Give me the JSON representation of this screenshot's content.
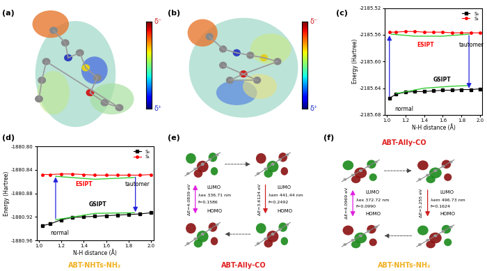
{
  "chart_data": [
    {
      "type": "line",
      "panel": "(c)",
      "xlabel": "N-H distance (Å)",
      "ylabel": "Energy (Hartree)",
      "xlim": [
        0.98,
        2.02
      ],
      "xticks": [
        {
          "value": 1.0,
          "label": "1.0"
        },
        {
          "value": 1.2,
          "label": "1.2"
        },
        {
          "value": 1.4,
          "label": "1.4"
        },
        {
          "value": 1.6,
          "label": "1.6"
        },
        {
          "value": 1.8,
          "label": "1.8"
        },
        {
          "value": 2.0,
          "label": "2.0"
        }
      ],
      "ylim": [
        -2185.68,
        -2185.52
      ],
      "yticks": [
        {
          "value": -2185.68,
          "label": "-2185.68"
        },
        {
          "value": -2185.64,
          "label": "-2185.64"
        },
        {
          "value": -2185.6,
          "label": "-2185.60"
        },
        {
          "value": -2185.56,
          "label": "-2185.56"
        },
        {
          "value": -2185.52,
          "label": "-2185.52"
        }
      ],
      "legend": "upper right",
      "series": [
        {
          "name": "S₀",
          "color": "#000000",
          "marker": "square",
          "line_style": "solid",
          "x": [
            1.03,
            1.1,
            1.2,
            1.3,
            1.4,
            1.5,
            1.6,
            1.7,
            1.8,
            1.9,
            2.0
          ],
          "values": [
            -2185.655,
            -2185.649,
            -2185.646,
            -2185.645,
            -2185.645,
            -2185.644,
            -2185.643,
            -2185.643,
            -2185.642,
            -2185.642,
            -2185.641
          ]
        },
        {
          "name": "S₁",
          "color": "#ff0000",
          "marker": "circle",
          "line_style": "solid",
          "x": [
            1.03,
            1.1,
            1.2,
            1.3,
            1.4,
            1.5,
            1.6,
            1.7,
            1.8,
            1.9,
            2.0
          ],
          "values": [
            -2185.556,
            -2185.556,
            -2185.555,
            -2185.555,
            -2185.556,
            -2185.556,
            -2185.556,
            -2185.557,
            -2185.557,
            -2185.557,
            -2185.557
          ]
        }
      ],
      "guides": [
        {
          "color": "#33cc33",
          "x": [
            1.05,
            1.3,
            1.6,
            1.88
          ],
          "values": [
            -2185.559,
            -2185.562,
            -2185.562,
            -2185.559
          ]
        },
        {
          "color": "#33cc33",
          "x": [
            1.1,
            1.4,
            1.7,
            1.88
          ],
          "values": [
            -2185.648,
            -2185.64,
            -2185.637,
            -2185.636
          ]
        }
      ],
      "arrows": [
        {
          "color": "#2222dd",
          "x": 1.03,
          "from": -2185.655,
          "to": -2185.558
        },
        {
          "color": "#2222dd",
          "x": 1.88,
          "from": -2185.558,
          "to": -2185.643
        }
      ],
      "annotations": [
        {
          "text": "ESIPT",
          "color": "#ff0000"
        },
        {
          "text": "GSIPT",
          "color": "#000000"
        },
        {
          "text": "normal",
          "color": "#000000"
        },
        {
          "text": "tautomer",
          "color": "#000000"
        }
      ]
    },
    {
      "type": "line",
      "panel": "(d)",
      "caption": "ABT-NHTs-NH₂",
      "caption_color": "#f0b020",
      "xlabel": "N-H distance (Å)",
      "ylabel": "Energy (Hartree)",
      "xlim": [
        0.98,
        2.02
      ],
      "xticks": [
        {
          "value": 1.0,
          "label": "1.0"
        },
        {
          "value": 1.2,
          "label": "1.2"
        },
        {
          "value": 1.4,
          "label": "1.4"
        },
        {
          "value": 1.6,
          "label": "1.6"
        },
        {
          "value": 1.8,
          "label": "1.8"
        },
        {
          "value": 2.0,
          "label": "2.0"
        }
      ],
      "ylim": [
        -1880.96,
        -1880.8
      ],
      "yticks": [
        {
          "value": -1880.96,
          "label": "-1880.96"
        },
        {
          "value": -1880.92,
          "label": "-1880.92"
        },
        {
          "value": -1880.88,
          "label": "-1880.88"
        },
        {
          "value": -1880.84,
          "label": "-1880.84"
        },
        {
          "value": -1880.8,
          "label": "-1880.80"
        }
      ],
      "legend": "upper right",
      "series": [
        {
          "name": "S₀",
          "color": "#000000",
          "marker": "square",
          "line_style": "solid",
          "x": [
            1.03,
            1.1,
            1.2,
            1.3,
            1.4,
            1.5,
            1.6,
            1.7,
            1.8,
            1.9,
            2.0
          ],
          "values": [
            -1880.935,
            -1880.932,
            -1880.925,
            -1880.921,
            -1880.92,
            -1880.919,
            -1880.918,
            -1880.917,
            -1880.916,
            -1880.915,
            -1880.913
          ]
        },
        {
          "name": "S₁",
          "color": "#ff0000",
          "marker": "circle",
          "line_style": "solid",
          "x": [
            1.03,
            1.1,
            1.2,
            1.3,
            1.4,
            1.5,
            1.6,
            1.7,
            1.8,
            1.9,
            2.0
          ],
          "values": [
            -1880.848,
            -1880.848,
            -1880.847,
            -1880.847,
            -1880.848,
            -1880.849,
            -1880.849,
            -1880.849,
            -1880.849,
            -1880.849,
            -1880.848
          ]
        }
      ],
      "guides": [
        {
          "color": "#33cc33",
          "x": [
            1.15,
            1.5,
            1.85
          ],
          "values": [
            -1880.851,
            -1880.856,
            -1880.853
          ]
        },
        {
          "color": "#33cc33",
          "x": [
            1.15,
            1.5,
            1.85
          ],
          "values": [
            -1880.925,
            -1880.914,
            -1880.913
          ]
        }
      ],
      "arrows": [
        {
          "color": "#2222dd",
          "x": 1.15,
          "from": -1880.926,
          "to": -1880.849
        },
        {
          "color": "#2222dd",
          "x": 1.86,
          "from": -1880.849,
          "to": -1880.915
        }
      ],
      "annotations": [
        {
          "text": "ESIPT",
          "color": "#ff0000"
        },
        {
          "text": "GSIPT",
          "color": "#000000"
        },
        {
          "text": "normal",
          "color": "#000000"
        },
        {
          "text": "tautomer",
          "color": "#000000"
        }
      ]
    }
  ],
  "esp_panels": [
    {
      "label": "(a)",
      "scale_top": "δ⁻",
      "scale_bottom": "δ⁺"
    },
    {
      "label": "(b)",
      "scale_top": "δ⁻",
      "scale_bottom": "δ⁺"
    }
  ],
  "orbital_panels": [
    {
      "label": "(e)",
      "caption": "ABT-Ally-CO",
      "caption_color": "#e02020",
      "columns": [
        {
          "top": "LUMO",
          "bottom": "HOMO",
          "gap": "ΔE=4.0839 eV",
          "wavelength": "λex 336.71 nm",
          "f": "f=0.1586"
        },
        {
          "top": "LUMO",
          "bottom": "HOMO",
          "gap": "ΔE=3.6124 eV",
          "wavelength": "λem 441.44 nm",
          "f": "f=0.2492"
        }
      ]
    },
    {
      "label": "(f)",
      "title": "ABT-Ally-CO",
      "title_color": "#e02020",
      "caption": "ABT-NHTs-NH₂",
      "caption_color": "#f0b020",
      "columns": [
        {
          "top": "LUMO",
          "bottom": "HOMO",
          "gap": "ΔE=4.0969 eV",
          "wavelength": "λex 372.72 nm",
          "f": "f=0.0990"
        },
        {
          "top": "LUMO",
          "bottom": "HOMO",
          "gap": "ΔE=3.255 eV",
          "wavelength": "λem 496.73 nm",
          "f": "f=0.1624"
        }
      ]
    }
  ]
}
